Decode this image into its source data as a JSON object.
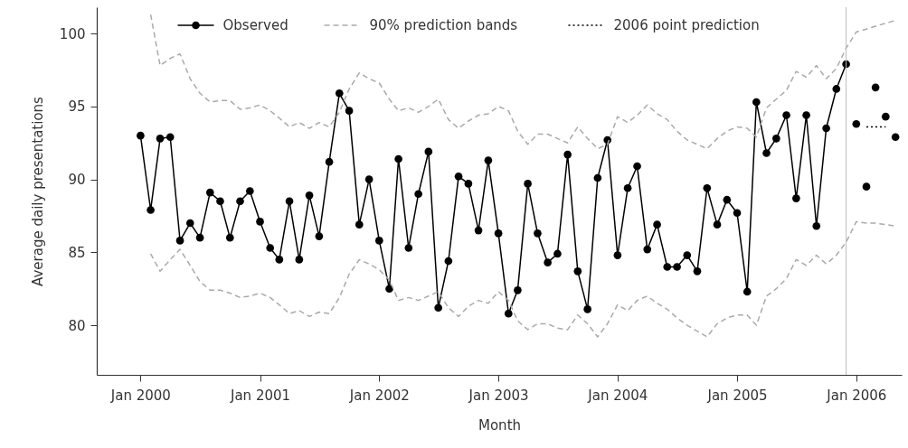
{
  "chart_data": {
    "type": "line",
    "xlabel": "Month",
    "ylabel": "Average daily presentations",
    "xlim": [
      "1999-08-20",
      "2006-05-20"
    ],
    "ylim": [
      76.6,
      101.8
    ],
    "xticks": [
      {
        "value": "2000-01",
        "label": "Jan 2000"
      },
      {
        "value": "2001-01",
        "label": "Jan 2001"
      },
      {
        "value": "2002-01",
        "label": "Jan 2002"
      },
      {
        "value": "2003-01",
        "label": "Jan 2003"
      },
      {
        "value": "2004-01",
        "label": "Jan 2004"
      },
      {
        "value": "2005-01",
        "label": "Jan 2005"
      },
      {
        "value": "2006-01",
        "label": "Jan 2006"
      }
    ],
    "yticks": [
      80,
      85,
      90,
      95,
      100
    ],
    "grid": false,
    "legend": "top",
    "ref_lines": [
      {
        "axis": "x",
        "value": "2005-12",
        "color": "#bbbbbb"
      }
    ],
    "series": [
      {
        "name": "Observed",
        "marker": "circle",
        "line_style": "solid",
        "color": "#000000",
        "x": [
          "2000-01",
          "2000-02",
          "2000-03",
          "2000-04",
          "2000-05",
          "2000-06",
          "2000-07",
          "2000-08",
          "2000-09",
          "2000-10",
          "2000-11",
          "2000-12",
          "2001-01",
          "2001-02",
          "2001-03",
          "2001-04",
          "2001-05",
          "2001-06",
          "2001-07",
          "2001-08",
          "2001-09",
          "2001-10",
          "2001-11",
          "2001-12",
          "2002-01",
          "2002-02",
          "2002-03",
          "2002-04",
          "2002-05",
          "2002-06",
          "2002-07",
          "2002-08",
          "2002-09",
          "2002-10",
          "2002-11",
          "2002-12",
          "2003-01",
          "2003-02",
          "2003-03",
          "2003-04",
          "2003-05",
          "2003-06",
          "2003-07",
          "2003-08",
          "2003-09",
          "2003-10",
          "2003-11",
          "2003-12",
          "2004-01",
          "2004-02",
          "2004-03",
          "2004-04",
          "2004-05",
          "2004-06",
          "2004-07",
          "2004-08",
          "2004-09",
          "2004-10",
          "2004-11",
          "2004-12",
          "2005-01",
          "2005-02",
          "2005-03",
          "2005-04",
          "2005-05",
          "2005-06",
          "2005-07",
          "2005-08",
          "2005-09",
          "2005-10",
          "2005-11",
          "2005-12"
        ],
        "values": [
          93.0,
          87.9,
          92.8,
          92.9,
          85.8,
          87.0,
          86.0,
          89.1,
          88.5,
          86.0,
          88.5,
          89.2,
          87.1,
          85.3,
          84.5,
          88.5,
          84.5,
          88.9,
          86.1,
          91.2,
          95.9,
          94.7,
          86.9,
          90.0,
          85.8,
          82.5,
          91.4,
          85.3,
          89.0,
          91.9,
          81.2,
          84.4,
          90.2,
          89.7,
          86.5,
          91.3,
          86.3,
          80.8,
          82.4,
          89.7,
          86.3,
          84.3,
          84.9,
          91.7,
          83.7,
          81.1,
          90.1,
          92.7,
          84.8,
          89.4,
          90.9,
          85.2,
          86.9,
          84.0,
          84.0,
          84.8,
          83.7,
          89.4,
          86.9,
          88.6,
          87.7,
          82.3,
          95.3,
          91.8,
          92.8,
          94.4,
          88.7,
          94.4,
          86.8,
          93.5,
          96.2,
          97.9
        ]
      },
      {
        "name": "90% prediction bands",
        "marker": "none",
        "line_style": "dashed",
        "color": "#aaaaaa",
        "x": [
          "2000-02",
          "2000-03",
          "2000-04",
          "2000-05",
          "2000-06",
          "2000-07",
          "2000-08",
          "2000-09",
          "2000-10",
          "2000-11",
          "2000-12",
          "2001-01",
          "2001-02",
          "2001-03",
          "2001-04",
          "2001-05",
          "2001-06",
          "2001-07",
          "2001-08",
          "2001-09",
          "2001-10",
          "2001-11",
          "2001-12",
          "2002-01",
          "2002-02",
          "2002-03",
          "2002-04",
          "2002-05",
          "2002-06",
          "2002-07",
          "2002-08",
          "2002-09",
          "2002-10",
          "2002-11",
          "2002-12",
          "2003-01",
          "2003-02",
          "2003-03",
          "2003-04",
          "2003-05",
          "2003-06",
          "2003-07",
          "2003-08",
          "2003-09",
          "2003-10",
          "2003-11",
          "2003-12",
          "2004-01",
          "2004-02",
          "2004-03",
          "2004-04",
          "2004-05",
          "2004-06",
          "2004-07",
          "2004-08",
          "2004-09",
          "2004-10",
          "2004-11",
          "2004-12",
          "2005-01",
          "2005-02",
          "2005-03",
          "2005-04",
          "2005-05",
          "2005-06",
          "2005-07",
          "2005-08",
          "2005-09",
          "2005-10",
          "2005-11",
          "2005-12",
          "2006-01",
          "2006-02",
          "2006-03",
          "2006-04",
          "2006-05"
        ],
        "values": [
          101.3,
          97.8,
          98.3,
          98.6,
          96.9,
          95.9,
          95.3,
          95.4,
          95.4,
          94.8,
          94.9,
          95.1,
          94.7,
          94.2,
          93.6,
          93.9,
          93.5,
          93.9,
          93.6,
          94.6,
          96.2,
          97.3,
          96.9,
          96.6,
          95.5,
          94.7,
          94.9,
          94.6,
          95.0,
          95.5,
          94.1,
          93.5,
          94.0,
          94.4,
          94.5,
          95.0,
          94.7,
          93.3,
          92.4,
          93.1,
          93.1,
          92.8,
          92.5,
          93.6,
          92.8,
          92.1,
          92.4,
          94.3,
          93.9,
          94.4,
          95.1,
          94.5,
          94.1,
          93.3,
          92.7,
          92.4,
          92.1,
          92.8,
          93.3,
          93.6,
          93.5,
          92.9,
          94.9,
          95.5,
          96.1,
          97.4,
          97.0,
          97.8,
          96.9,
          97.6,
          99.0,
          100.1,
          100.3,
          100.5,
          100.7,
          100.9
        ]
      },
      {
        "marker": "none",
        "line_style": "dashed",
        "color": "#aaaaaa",
        "x": [
          "2000-02",
          "2000-03",
          "2000-04",
          "2000-05",
          "2000-06",
          "2000-07",
          "2000-08",
          "2000-09",
          "2000-10",
          "2000-11",
          "2000-12",
          "2001-01",
          "2001-02",
          "2001-03",
          "2001-04",
          "2001-05",
          "2001-06",
          "2001-07",
          "2001-08",
          "2001-09",
          "2001-10",
          "2001-11",
          "2001-12",
          "2002-01",
          "2002-02",
          "2002-03",
          "2002-04",
          "2002-05",
          "2002-06",
          "2002-07",
          "2002-08",
          "2002-09",
          "2002-10",
          "2002-11",
          "2002-12",
          "2003-01",
          "2003-02",
          "2003-03",
          "2003-04",
          "2003-05",
          "2003-06",
          "2003-07",
          "2003-08",
          "2003-09",
          "2003-10",
          "2003-11",
          "2003-12",
          "2004-01",
          "2004-02",
          "2004-03",
          "2004-04",
          "2004-05",
          "2004-06",
          "2004-07",
          "2004-08",
          "2004-09",
          "2004-10",
          "2004-11",
          "2004-12",
          "2005-01",
          "2005-02",
          "2005-03",
          "2005-04",
          "2005-05",
          "2005-06",
          "2005-07",
          "2005-08",
          "2005-09",
          "2005-10",
          "2005-11",
          "2005-12",
          "2006-01",
          "2006-02",
          "2006-03",
          "2006-04",
          "2006-05"
        ],
        "values": [
          84.9,
          83.7,
          84.5,
          85.2,
          84.1,
          83.0,
          82.4,
          82.4,
          82.2,
          81.9,
          82.0,
          82.2,
          81.9,
          81.4,
          80.8,
          81.0,
          80.6,
          80.9,
          80.8,
          81.9,
          83.5,
          84.5,
          84.2,
          83.8,
          83.1,
          81.7,
          81.9,
          81.7,
          82.0,
          82.3,
          81.2,
          80.6,
          81.3,
          81.7,
          81.5,
          82.3,
          81.7,
          80.3,
          79.7,
          80.1,
          80.1,
          79.8,
          79.7,
          80.7,
          80.1,
          79.2,
          80.1,
          81.4,
          81.0,
          81.7,
          82.0,
          81.5,
          81.1,
          80.5,
          80.0,
          79.6,
          79.2,
          80.1,
          80.5,
          80.7,
          80.7,
          80.0,
          82.0,
          82.5,
          83.2,
          84.5,
          84.1,
          84.8,
          84.2,
          84.8,
          85.7,
          87.1,
          87.0,
          87.0,
          86.9,
          86.8
        ]
      },
      {
        "name": "2006 point prediction",
        "marker": "none",
        "line_style": "dotted",
        "color": "#000000",
        "x": [
          "2006-02",
          "2006-04"
        ],
        "values": [
          93.6,
          93.6
        ]
      },
      {
        "type": "scatter",
        "marker": "circle",
        "color": "#000000",
        "x": [
          "2006-01",
          "2006-02",
          "2006-03",
          "2006-04",
          "2006-05"
        ],
        "values": [
          93.8,
          89.5,
          96.3,
          94.3,
          92.9
        ]
      }
    ]
  }
}
